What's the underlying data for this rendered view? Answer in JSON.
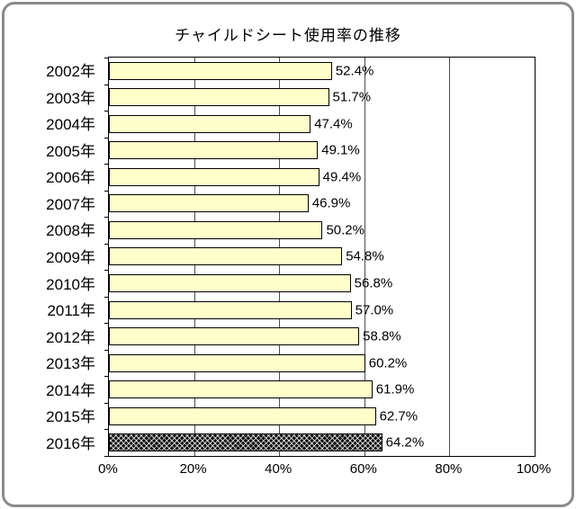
{
  "chart_data": {
    "type": "bar",
    "orientation": "horizontal",
    "title": "チャイルドシート使用率の推移",
    "categories": [
      "2002年",
      "2003年",
      "2004年",
      "2005年",
      "2006年",
      "2007年",
      "2008年",
      "2009年",
      "2010年",
      "2011年",
      "2012年",
      "2013年",
      "2014年",
      "2015年",
      "2016年"
    ],
    "values": [
      52.4,
      51.7,
      47.4,
      49.1,
      49.4,
      46.9,
      50.2,
      54.8,
      56.8,
      57.0,
      58.8,
      60.2,
      61.9,
      62.7,
      64.2
    ],
    "value_labels": [
      "52.4%",
      "51.7%",
      "47.4%",
      "49.1%",
      "49.4%",
      "46.9%",
      "50.2%",
      "54.8%",
      "56.8%",
      "57.0%",
      "58.8%",
      "60.2%",
      "61.9%",
      "62.7%",
      "64.2%"
    ],
    "xticks": [
      "0%",
      "20%",
      "40%",
      "60%",
      "80%",
      "100%"
    ],
    "xlim": [
      0,
      100
    ],
    "grid": true,
    "legend": "none",
    "bar_color": "#ffffcc",
    "bar_border_color": "#000000",
    "highlight_category": "2016年",
    "highlight_style": "black crosshatch"
  }
}
